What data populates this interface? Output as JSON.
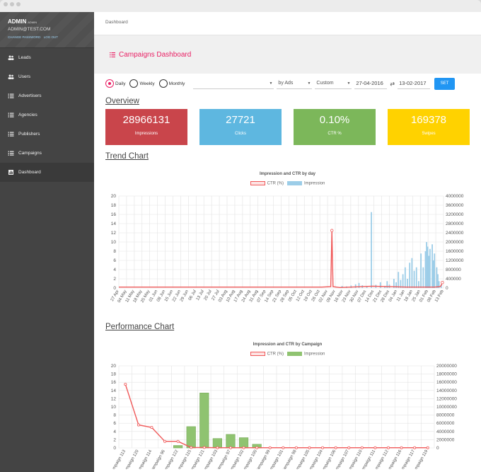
{
  "sidebar": {
    "user": {
      "name": "ADMIN",
      "role": "ADMIN",
      "email": "ADMIN@TEST.COM",
      "change_password": "CHANGE PASSWORD",
      "logout": "LOG OUT"
    },
    "items": [
      {
        "label": "Leads",
        "icon": "people-icon"
      },
      {
        "label": "Users",
        "icon": "people-icon"
      },
      {
        "label": "Advertisers",
        "icon": "list-icon"
      },
      {
        "label": "Agencies",
        "icon": "list-icon"
      },
      {
        "label": "Publishers",
        "icon": "list-icon"
      },
      {
        "label": "Campaigns",
        "icon": "list-icon"
      },
      {
        "label": "Dashboard",
        "icon": "chart-icon",
        "active": true
      }
    ]
  },
  "breadcrumb": "Dashboard",
  "page_title": "Campaigns Dashboard",
  "filters": {
    "period_options": [
      "Daily",
      "Weekly",
      "Monthly"
    ],
    "period_selected": "Daily",
    "select_1": "",
    "group_by": "by Ads",
    "range": "Custom",
    "date_from": "27-04-2016",
    "date_to": "13-02-2017",
    "set_button": "SET"
  },
  "overview": {
    "title": "Overview",
    "cards": [
      {
        "value": "28966131",
        "label": "Impressions",
        "color": "#c9454b"
      },
      {
        "value": "27721",
        "label": "Clicks",
        "color": "#5eb7e0"
      },
      {
        "value": "0.10%",
        "label": "CTR %",
        "color": "#7cb75a"
      },
      {
        "value": "169378",
        "label": "Swipes",
        "color": "#ffd200"
      }
    ]
  },
  "trend": {
    "section_title": "Trend Chart"
  },
  "performance": {
    "section_title": "Performance Chart"
  },
  "colors": {
    "accent": "#e91e63",
    "ctr_line": "#f05a5a",
    "impression_bar": "#9ccde8",
    "campaign_bar": "#8fc370",
    "button": "#2196f3"
  },
  "chart_data": [
    {
      "type": "bar",
      "title": "Impression and CTR by day",
      "legend": [
        "CTR (%)",
        "Impression"
      ],
      "legend_placement": "top",
      "grid": true,
      "ylim_left": [
        0,
        20
      ],
      "ylim_right": [
        0,
        4000000
      ],
      "left_ticks": [
        "20",
        "18",
        "16",
        "14",
        "12",
        "10",
        "8",
        "6",
        "4",
        "2",
        "0"
      ],
      "right_ticks": [
        "4000000",
        "3600000",
        "3200000",
        "2800000",
        "2400000",
        "2000000",
        "1600000",
        "1200000",
        "800000",
        "400000",
        "0"
      ],
      "x_tick_labels": [
        "27 Apr",
        "04 May",
        "11 May",
        "18 May",
        "25 May",
        "01 Jun",
        "08 Jun",
        "15 Jun",
        "22 Jun",
        "29 Jun",
        "06 Jul",
        "13 Jul",
        "20 Jul",
        "27 Jul",
        "03 Aug",
        "10 Aug",
        "17 Aug",
        "24 Aug",
        "31 Aug",
        "07 Sep",
        "14 Sep",
        "21 Sep",
        "28 Sep",
        "05 Oct",
        "12 Oct",
        "19 Oct",
        "26 Oct",
        "02 Nov",
        "09 Nov",
        "16 Nov",
        "23 Nov",
        "30 Nov",
        "07 Dec",
        "14 Dec",
        "21 Dec",
        "28 Dec",
        "04 Jan",
        "11 Jan",
        "18 Jan",
        "25 Jan",
        "01 Feb",
        "08 Feb",
        "13 Feb"
      ],
      "series": [
        {
          "name": "CTR (%)",
          "axis": "left",
          "points": [
            [
              0,
              0.2
            ],
            [
              30,
              0.2
            ],
            [
              60,
              0.2
            ],
            [
              90,
              0.2
            ],
            [
              120,
              0.2
            ],
            [
              150,
              0.2
            ],
            [
              180,
              0.2
            ],
            [
              188,
              0.3
            ],
            [
              189,
              12.5
            ],
            [
              190,
              0.3
            ],
            [
              196,
              0.1
            ],
            [
              215,
              0.3
            ],
            [
              225,
              0.4
            ],
            [
              240,
              0.3
            ],
            [
              255,
              0.2
            ],
            [
              270,
              0.2
            ],
            [
              280,
              0.2
            ],
            [
              285,
              0.3
            ],
            [
              286,
              0.6
            ],
            [
              287,
              1.2
            ]
          ]
        },
        {
          "name": "Impression",
          "axis": "right",
          "points": [
            [
              198,
              90000
            ],
            [
              202,
              70000
            ],
            [
              206,
              110000
            ],
            [
              210,
              160000
            ],
            [
              213,
              220000
            ],
            [
              216,
              120000
            ],
            [
              220,
              80000
            ],
            [
              224,
              3300000
            ],
            [
              228,
              140000
            ],
            [
              232,
              250000
            ],
            [
              236,
              90000
            ],
            [
              238,
              300000
            ],
            [
              240,
              150000
            ],
            [
              244,
              400000
            ],
            [
              246,
              250000
            ],
            [
              248,
              700000
            ],
            [
              250,
              350000
            ],
            [
              252,
              600000
            ],
            [
              254,
              900000
            ],
            [
              256,
              400000
            ],
            [
              258,
              1100000
            ],
            [
              260,
              1300000
            ],
            [
              262,
              750000
            ],
            [
              264,
              900000
            ],
            [
              266,
              300000
            ],
            [
              268,
              1500000
            ],
            [
              270,
              900000
            ],
            [
              272,
              1600000
            ],
            [
              273,
              2000000
            ],
            [
              274,
              1800000
            ],
            [
              275,
              1400000
            ],
            [
              276,
              1700000
            ],
            [
              278,
              1900000
            ],
            [
              279,
              1200000
            ],
            [
              280,
              1500000
            ],
            [
              282,
              900000
            ],
            [
              283,
              600000
            ],
            [
              284,
              300000
            ],
            [
              286,
              150000
            ]
          ]
        }
      ]
    },
    {
      "type": "bar",
      "title": "Impression and CTR by Campaign",
      "legend": [
        "CTR (%)",
        "Impression"
      ],
      "legend_placement": "top",
      "grid": true,
      "ylim_left": [
        0,
        20
      ],
      "ylim_right": [
        0,
        20000000
      ],
      "left_ticks": [
        "20",
        "18",
        "16",
        "14",
        "12",
        "10",
        "8",
        "6",
        "4",
        "2",
        "0"
      ],
      "right_ticks": [
        "20000000",
        "18000000",
        "16000000",
        "14000000",
        "12000000",
        "10000000",
        "8000000",
        "6000000",
        "4000000",
        "2000000",
        "0"
      ],
      "categories": [
        "Campaign 113",
        "Campaign 120",
        "Campaign 114",
        "Campaign 96",
        "Campaign 122",
        "Campaign 115",
        "Campaign 121",
        "Campaign 103",
        "Campaign 97",
        "Campaign 102",
        "Campaign 100",
        "Campaign 99",
        "Campaign 101",
        "Campaign 98",
        "Campaign 105",
        "Campaign 104",
        "Campaign 106",
        "Campaign 107",
        "Campaign 110",
        "Campaign 111",
        "Campaign 112",
        "Campaign 116",
        "Campaign 117",
        "Campaign 119"
      ],
      "series": [
        {
          "name": "CTR (%)",
          "axis": "left",
          "values": [
            15.5,
            5.6,
            5,
            1.6,
            1.6,
            0.1,
            0.1,
            0.05,
            0.05,
            0.05,
            0.05,
            0.05,
            0.05,
            0.05,
            0.05,
            0.05,
            0.05,
            0.05,
            0.05,
            0.05,
            0.05,
            0.05,
            0.05,
            0.05
          ]
        },
        {
          "name": "Impression",
          "axis": "right",
          "values": [
            0,
            0,
            0,
            0,
            600000,
            5200000,
            13400000,
            2300000,
            3300000,
            2500000,
            900000,
            0,
            0,
            0,
            0,
            0,
            0,
            0,
            0,
            0,
            0,
            0,
            0,
            0
          ]
        }
      ]
    }
  ]
}
